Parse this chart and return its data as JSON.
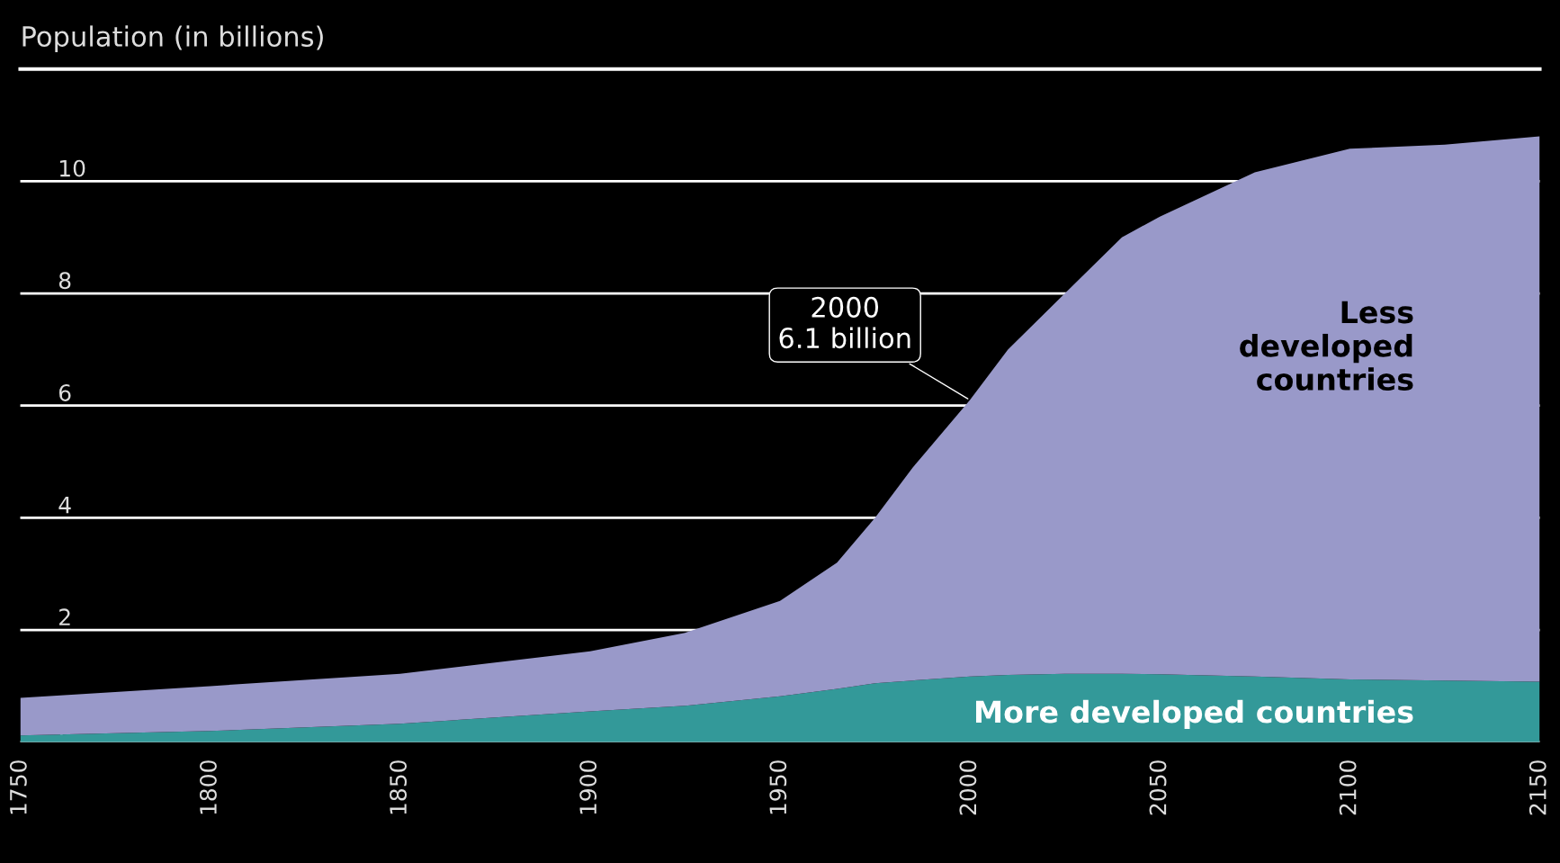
{
  "chart_data": {
    "type": "area",
    "stacked": true,
    "title": "Population (in billions)",
    "x": [
      1750,
      1800,
      1850,
      1900,
      1925,
      1950,
      1965,
      1975,
      1985,
      2000,
      2010,
      2025,
      2040,
      2050,
      2075,
      2100,
      2125,
      2150
    ],
    "series": [
      {
        "name": "More developed countries",
        "color": "#339999",
        "values": [
          0.12,
          0.2,
          0.33,
          0.55,
          0.65,
          0.82,
          0.95,
          1.05,
          1.1,
          1.17,
          1.2,
          1.22,
          1.22,
          1.21,
          1.17,
          1.12,
          1.1,
          1.08
        ]
      },
      {
        "name": "Less\ndeveloped\ncountries",
        "color": "#9999c9",
        "values": [
          0.67,
          0.8,
          0.89,
          1.07,
          1.3,
          1.7,
          2.25,
          2.95,
          3.8,
          4.93,
          5.8,
          6.78,
          7.78,
          8.16,
          8.99,
          9.46,
          9.55,
          9.72
        ]
      }
    ],
    "xlim": [
      1750,
      2150
    ],
    "xticks": [
      1750,
      1800,
      1850,
      1900,
      1950,
      2000,
      2050,
      2100,
      2150
    ],
    "ylim": [
      0,
      12
    ],
    "yticks": [
      0,
      2,
      4,
      6,
      8,
      10
    ],
    "grid": "y",
    "annotations": [
      {
        "text": "2000\n6.1 billion",
        "x": 2000,
        "y": 6.1
      }
    ]
  }
}
